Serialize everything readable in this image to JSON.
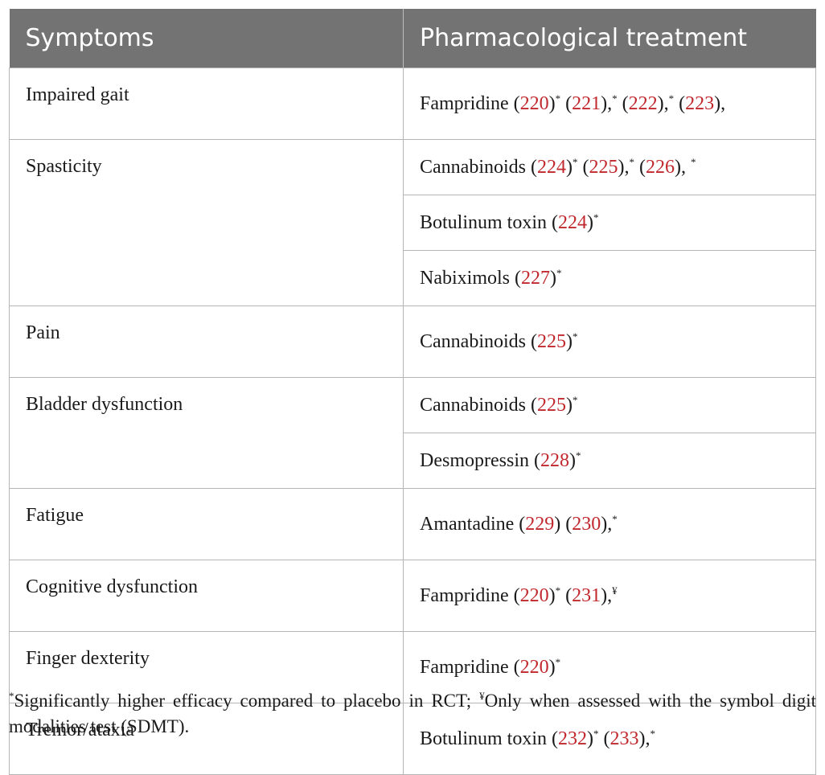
{
  "table": {
    "headers": [
      "Symptoms",
      "Pharmacological treatment"
    ],
    "rows": [
      {
        "symptom": "Impaired gait",
        "treatments": [
          [
            [
              "t",
              "Fampridine ("
            ],
            [
              "r",
              "220"
            ],
            [
              "t",
              ")"
            ],
            [
              "s",
              "*"
            ],
            [
              "t",
              " ("
            ],
            [
              "r",
              "221"
            ],
            [
              "t",
              "),"
            ],
            [
              "s",
              "*"
            ],
            [
              "t",
              " ("
            ],
            [
              "r",
              "222"
            ],
            [
              "t",
              "),"
            ],
            [
              "s",
              "*"
            ],
            [
              "t",
              " ("
            ],
            [
              "r",
              "223"
            ],
            [
              "t",
              "),"
            ]
          ]
        ]
      },
      {
        "symptom": "Spasticity",
        "treatments": [
          [
            [
              "t",
              "Cannabinoids ("
            ],
            [
              "r",
              "224"
            ],
            [
              "t",
              ")"
            ],
            [
              "s",
              "*"
            ],
            [
              "t",
              " ("
            ],
            [
              "r",
              "225"
            ],
            [
              "t",
              "),"
            ],
            [
              "s",
              "*"
            ],
            [
              "t",
              " ("
            ],
            [
              "r",
              "226"
            ],
            [
              "t",
              "), "
            ],
            [
              "s",
              "*"
            ]
          ],
          [
            [
              "t",
              "Botulinum toxin ("
            ],
            [
              "r",
              "224"
            ],
            [
              "t",
              ")"
            ],
            [
              "s",
              "*"
            ]
          ],
          [
            [
              "t",
              "Nabiximols ("
            ],
            [
              "r",
              "227"
            ],
            [
              "t",
              ")"
            ],
            [
              "s",
              "*"
            ]
          ]
        ]
      },
      {
        "symptom": "Pain",
        "treatments": [
          [
            [
              "t",
              "Cannabinoids ("
            ],
            [
              "r",
              "225"
            ],
            [
              "t",
              ")"
            ],
            [
              "s",
              "*"
            ]
          ]
        ]
      },
      {
        "symptom": "Bladder dysfunction",
        "treatments": [
          [
            [
              "t",
              "Cannabinoids ("
            ],
            [
              "r",
              "225"
            ],
            [
              "t",
              ")"
            ],
            [
              "s",
              "*"
            ]
          ],
          [
            [
              "t",
              "Desmopressin ("
            ],
            [
              "r",
              "228"
            ],
            [
              "t",
              ")"
            ],
            [
              "s",
              "*"
            ]
          ]
        ]
      },
      {
        "symptom": "Fatigue",
        "treatments": [
          [
            [
              "t",
              "Amantadine ("
            ],
            [
              "r",
              "229"
            ],
            [
              "t",
              ") ("
            ],
            [
              "r",
              "230"
            ],
            [
              "t",
              "),"
            ],
            [
              "s",
              "*"
            ]
          ]
        ]
      },
      {
        "symptom": "Cognitive dysfunction",
        "treatments": [
          [
            [
              "t",
              "Fampridine ("
            ],
            [
              "r",
              "220"
            ],
            [
              "t",
              ")"
            ],
            [
              "s",
              "*"
            ],
            [
              "t",
              " ("
            ],
            [
              "r",
              "231"
            ],
            [
              "t",
              "),"
            ],
            [
              "s",
              "¥"
            ]
          ]
        ]
      },
      {
        "symptom": "Finger dexterity",
        "treatments": [
          [
            [
              "t",
              "Fampridine ("
            ],
            [
              "r",
              "220"
            ],
            [
              "t",
              ")"
            ],
            [
              "s",
              "*"
            ]
          ]
        ]
      },
      {
        "symptom": "Tremor/ataxia",
        "treatments": [
          [
            [
              "t",
              "Botulinum toxin ("
            ],
            [
              "r",
              "232"
            ],
            [
              "t",
              ")"
            ],
            [
              "s",
              "*"
            ],
            [
              "t",
              " ("
            ],
            [
              "r",
              "233"
            ],
            [
              "t",
              "),"
            ],
            [
              "s",
              "*"
            ]
          ]
        ]
      }
    ]
  },
  "footnote": {
    "mark1": "*",
    "text1": "Significantly higher efficacy compared to placebo in RCT; ",
    "mark2": "¥",
    "text2": "Only when assessed with the symbol digit modalities test (SDMT)."
  }
}
